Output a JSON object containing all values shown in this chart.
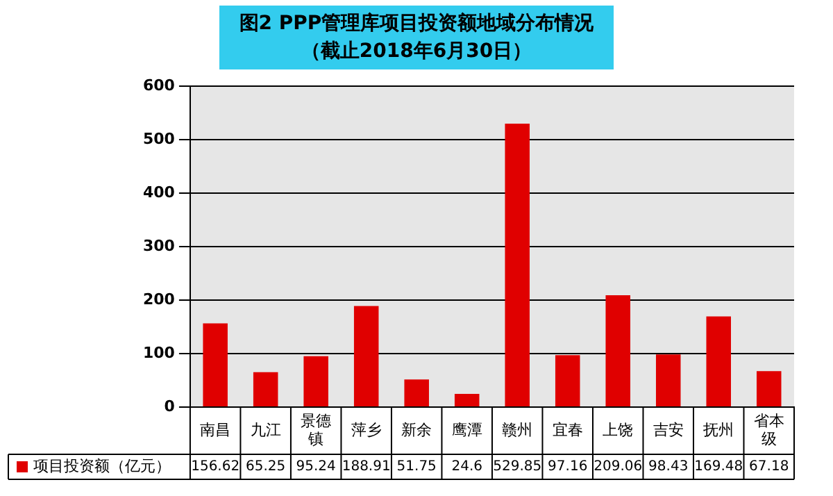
{
  "chart_data": {
    "type": "bar",
    "title": "图2 PPP管理库项目投资额地域分布情况",
    "subtitle": "（截止2018年6月30日）",
    "categories": [
      "南昌",
      "九江",
      "景德镇",
      "萍乡",
      "新余",
      "鹰潭",
      "赣州",
      "宜春",
      "上饶",
      "吉安",
      "抚州",
      "省本级"
    ],
    "series": [
      {
        "name": "项目投资额（亿元）",
        "color": "#e00000",
        "values": [
          156.62,
          65.25,
          95.24,
          188.91,
          51.75,
          24.6,
          529.85,
          97.16,
          209.06,
          98.43,
          169.48,
          67.18
        ]
      }
    ],
    "ylim": [
      0,
      600
    ],
    "yticks": [
      0,
      100,
      200,
      300,
      400,
      500,
      600
    ],
    "grid": "y",
    "legend": "bottom",
    "data_labels": true
  }
}
